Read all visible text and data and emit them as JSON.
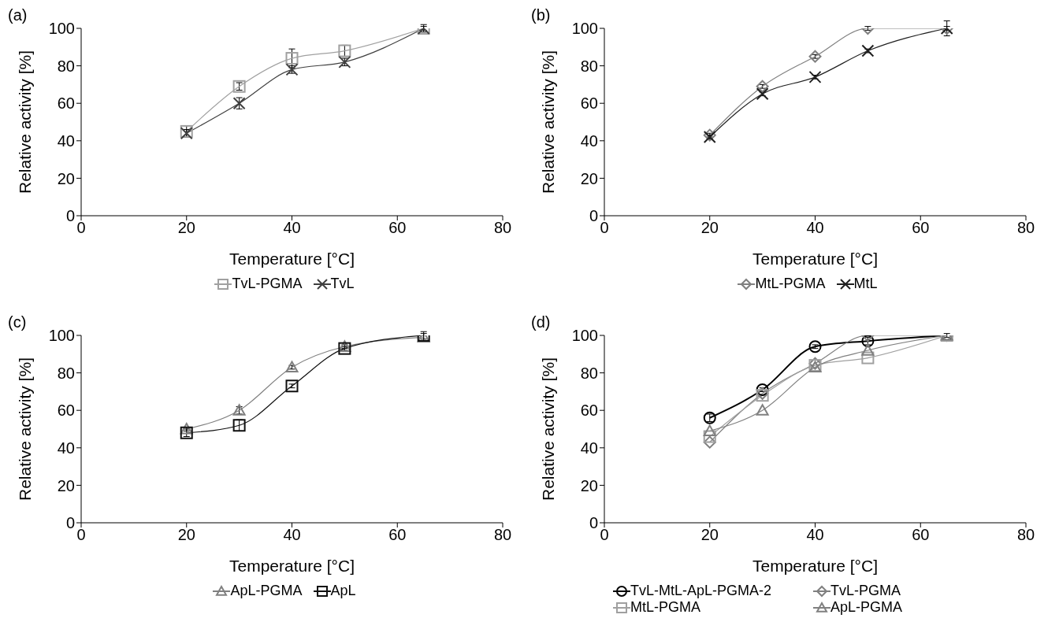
{
  "chart_data": [
    {
      "type": "line",
      "title": "(a)",
      "xlabel": "Temperature [°C]",
      "ylabel": "Relative activity [%]",
      "x": [
        20,
        30,
        40,
        50,
        65
      ],
      "xlim": [
        0,
        80
      ],
      "xticks": [
        0,
        20,
        40,
        60,
        80
      ],
      "ylim": [
        0,
        100
      ],
      "yticks": [
        0,
        20,
        40,
        60,
        80,
        100
      ],
      "grid": false,
      "legend": "bottom",
      "series": [
        {
          "name": "TvL-PGMA",
          "color": "#a0a0a0",
          "marker": "square",
          "values": [
            45,
            69,
            84,
            88,
            100
          ],
          "errors": [
            3,
            2,
            5,
            3,
            1
          ]
        },
        {
          "name": "TvL",
          "color": "#404040",
          "marker": "cross",
          "values": [
            44,
            60,
            78,
            82,
            100
          ],
          "errors": [
            2,
            3,
            2,
            2,
            2
          ]
        }
      ]
    },
    {
      "type": "line",
      "title": "(b)",
      "xlabel": "Temperature [°C]",
      "ylabel": "Relative activity [%]",
      "x": [
        20,
        30,
        40,
        50,
        65
      ],
      "xlim": [
        0,
        80
      ],
      "xticks": [
        0,
        20,
        40,
        60,
        80
      ],
      "ylim": [
        0,
        100
      ],
      "yticks": [
        0,
        20,
        40,
        60,
        80,
        100
      ],
      "grid": false,
      "legend": "bottom",
      "series": [
        {
          "name": "MtL-PGMA",
          "color": "#808080",
          "marker": "diamond",
          "values": [
            43,
            69,
            85,
            100,
            100
          ],
          "errors": [
            1,
            1,
            1,
            1,
            1
          ]
        },
        {
          "name": "MtL",
          "color": "#202020",
          "marker": "cross",
          "values": [
            42,
            65,
            74,
            88,
            100
          ],
          "errors": [
            1,
            1,
            1,
            1,
            4
          ]
        }
      ]
    },
    {
      "type": "line",
      "title": "(c)",
      "xlabel": "Temperature [°C]",
      "ylabel": "Relative activity [%]",
      "x": [
        20,
        30,
        40,
        50,
        65
      ],
      "xlim": [
        0,
        80
      ],
      "xticks": [
        0,
        20,
        40,
        60,
        80
      ],
      "ylim": [
        0,
        100
      ],
      "yticks": [
        0,
        20,
        40,
        60,
        80,
        100
      ],
      "grid": false,
      "legend": "bottom",
      "series": [
        {
          "name": "ApL-PGMA",
          "color": "#808080",
          "marker": "triangle",
          "values": [
            50,
            60,
            83,
            94,
            99
          ],
          "errors": [
            1,
            2,
            1,
            1,
            2
          ]
        },
        {
          "name": "ApL",
          "color": "#101010",
          "marker": "square",
          "values": [
            48,
            52,
            73,
            93,
            100
          ],
          "errors": [
            2,
            3,
            1,
            1,
            2
          ]
        }
      ]
    },
    {
      "type": "line",
      "title": "(d)",
      "xlabel": "Temperature [°C]",
      "ylabel": "Relative activity [%]",
      "x": [
        20,
        30,
        40,
        50,
        65
      ],
      "xlim": [
        0,
        80
      ],
      "xticks": [
        0,
        20,
        40,
        60,
        80
      ],
      "ylim": [
        0,
        100
      ],
      "yticks": [
        0,
        20,
        40,
        60,
        80,
        100
      ],
      "grid": false,
      "legend": "bottom",
      "series": [
        {
          "name": "TvL-MtL-ApL-PGMA-2",
          "color": "#000000",
          "marker": "circle",
          "values": [
            56,
            71,
            94,
            97,
            100
          ],
          "errors": [
            2,
            1,
            1,
            2,
            1
          ]
        },
        {
          "name": "TvL-PGMA",
          "color": "#808080",
          "marker": "diamond",
          "values": [
            43,
            69,
            85,
            100,
            100
          ]
        },
        {
          "name": "MtL-PGMA",
          "color": "#a0a0a0",
          "marker": "square",
          "values": [
            46,
            68,
            84,
            88,
            100
          ]
        },
        {
          "name": "ApL-PGMA",
          "color": "#808080",
          "marker": "triangle",
          "values": [
            49,
            60,
            83,
            92,
            100
          ]
        }
      ]
    }
  ]
}
